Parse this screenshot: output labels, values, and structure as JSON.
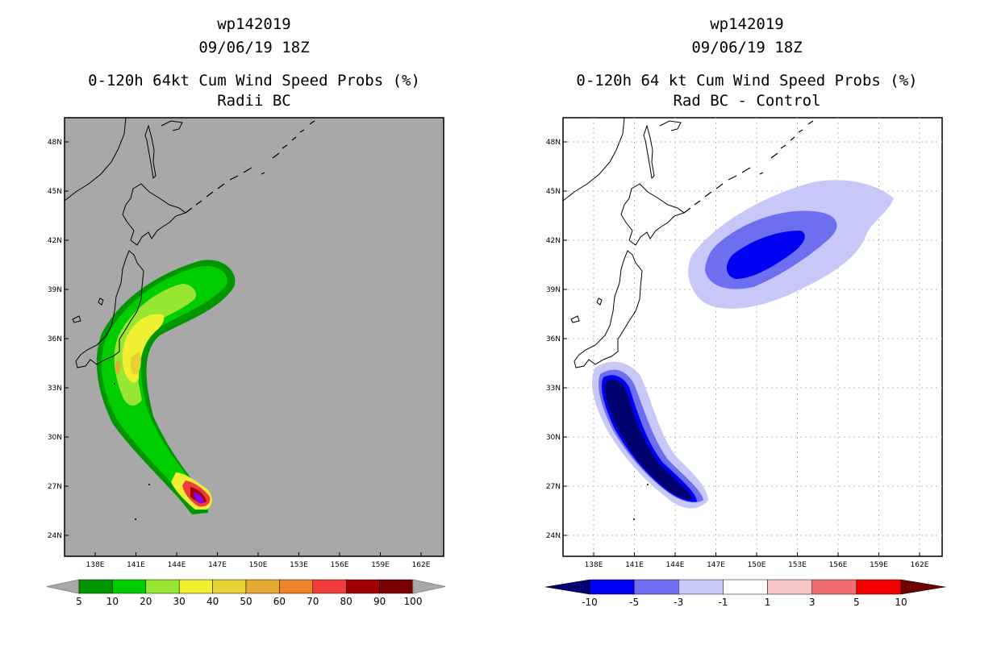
{
  "left": {
    "title_line1": "wp142019",
    "title_line2": "09/06/19 18Z",
    "title_line3": "0-120h 64kt Cum Wind Speed Probs (%)",
    "title_line4": "Radii BC",
    "background_color": "#a8a8a8",
    "colorbar": {
      "labels": [
        "5",
        "10",
        "20",
        "30",
        "40",
        "50",
        "60",
        "70",
        "80",
        "90",
        "100"
      ],
      "colors": [
        "#009600",
        "#00cd00",
        "#96e632",
        "#f0f032",
        "#e6d232",
        "#e6aa32",
        "#f08228",
        "#f03c3c",
        "#a00000",
        "#780000",
        "#8c00e6"
      ]
    }
  },
  "right": {
    "title_line1": "wp142019",
    "title_line2": "09/06/19 18Z",
    "title_line3": "0-120h 64 kt Cum Wind Speed Probs (%)",
    "title_line4": "Rad BC - Control",
    "background_color": "#ffffff",
    "colorbar": {
      "labels": [
        "-10",
        "-5",
        "-3",
        "-1",
        "1",
        "3",
        "5",
        "10"
      ],
      "colors": [
        "#00006e",
        "#0000f0",
        "#6e6ef0",
        "#c8c8f8",
        "#ffffff",
        "#f8c8c8",
        "#f06e6e",
        "#f00000",
        "#6e0000"
      ]
    }
  },
  "axes": {
    "lat_labels": [
      "48N",
      "45N",
      "42N",
      "39N",
      "36N",
      "33N",
      "30N",
      "27N",
      "24N"
    ],
    "lon_labels": [
      "138E",
      "141E",
      "144E",
      "147E",
      "150E",
      "153E",
      "156E",
      "159E",
      "162E"
    ]
  }
}
